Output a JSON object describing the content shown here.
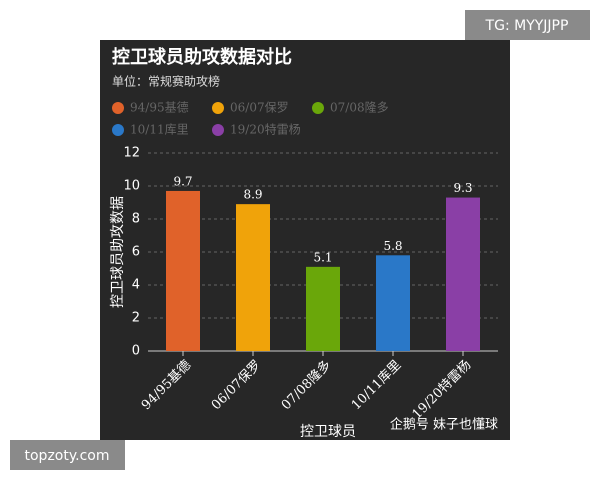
{
  "chart_data": {
    "type": "bar",
    "title": "控卫球员助攻数据对比",
    "subtitle": "单位：常规赛助攻榜",
    "y_label": "控卫球员助攻数据",
    "x_label": "控卫球员",
    "categories": [
      "94/95基德",
      "06/07保罗",
      "07/08隆多",
      "10/11库里",
      "19/20特雷杨"
    ],
    "values": [
      9.7,
      8.9,
      5.1,
      5.8,
      9.3
    ],
    "colors": [
      "#e0622a",
      "#f0a30a",
      "#6aa70a",
      "#2a78c8",
      "#8a3fa6"
    ],
    "ylim": [
      0,
      12
    ],
    "yticks": [
      0,
      2,
      4,
      6,
      8,
      10,
      12
    ],
    "grid": true
  },
  "watermarks": {
    "top_right": "TG: MYYJJPP",
    "bottom_left": "topzoty.com",
    "source": "企鹅号 妹子也懂球"
  }
}
